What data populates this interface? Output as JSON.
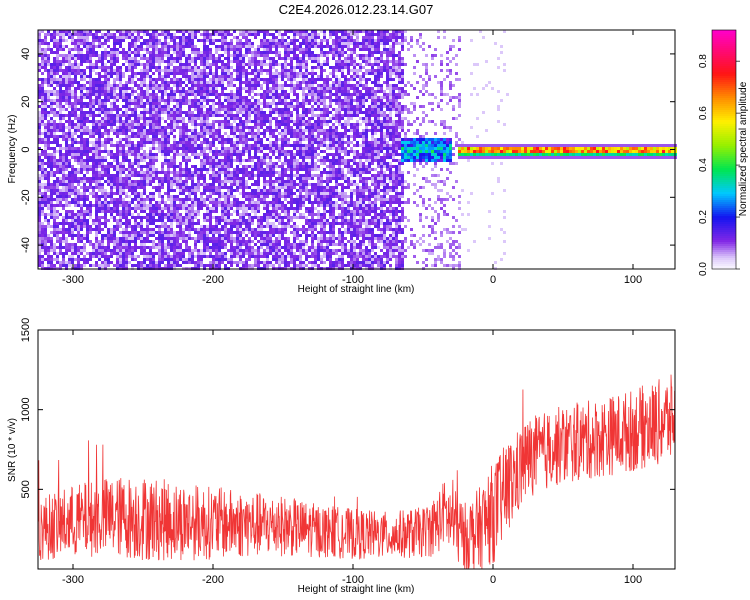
{
  "title": "C2E4.2026.012.23.14.G07",
  "chart_data": [
    {
      "type": "heatmap",
      "xlabel": "Height of straight line (km)",
      "ylabel": "Frequency (Hz)",
      "xlim": [
        -325,
        130
      ],
      "ylim": [
        -50,
        50
      ],
      "xticks": [
        -300,
        -200,
        -100,
        0,
        100
      ],
      "yticks": [
        -40,
        -20,
        0,
        20,
        40
      ],
      "colorbar": {
        "label": "Normalized spectral amplitude",
        "range": [
          0,
          0.92
        ],
        "ticks": [
          "0.0",
          "0.2",
          "0.4",
          "0.6",
          "0.8"
        ],
        "colormap": "rainbow (white-purple-blue-cyan-green-yellow-orange-red-magenta)"
      },
      "features": [
        {
          "description": "noise band",
          "x_range": [
            -325,
            -65
          ],
          "freq_range": [
            -50,
            50
          ],
          "amplitude": 0.03
        },
        {
          "description": "fading noise",
          "x_range": [
            -65,
            -25
          ],
          "freq_range": [
            -50,
            50
          ],
          "amplitude": 0.01
        },
        {
          "description": "signal onset",
          "x_range": [
            -65,
            -30
          ],
          "freq": 0,
          "amplitude_range": [
            0.2,
            0.4
          ]
        },
        {
          "description": "strong carrier",
          "x_range": [
            -20,
            130
          ],
          "freq": 0,
          "amplitude_range": [
            0.5,
            0.9
          ]
        }
      ]
    },
    {
      "type": "line",
      "xlabel": "Height of straight line (km)",
      "ylabel": "SNR (10 * v/v)",
      "xlim": [
        -325,
        130
      ],
      "ylim": [
        0,
        1500
      ],
      "xticks": [
        -300,
        -200,
        -100,
        0,
        100
      ],
      "yticks": [
        500,
        1000,
        1500
      ],
      "color": "#f03535",
      "x": [
        -325,
        -300,
        -275,
        -250,
        -225,
        -200,
        -175,
        -150,
        -125,
        -100,
        -75,
        -50,
        -40,
        -35,
        -30,
        -20,
        -10,
        0,
        10,
        25,
        50,
        75,
        100,
        130
      ],
      "mean": [
        250,
        300,
        330,
        320,
        300,
        290,
        280,
        270,
        240,
        220,
        210,
        230,
        280,
        360,
        300,
        200,
        250,
        350,
        500,
        700,
        780,
        820,
        870,
        950
      ],
      "spread": [
        200,
        230,
        250,
        270,
        250,
        230,
        210,
        190,
        170,
        160,
        150,
        160,
        200,
        200,
        230,
        220,
        260,
        320,
        300,
        250,
        250,
        250,
        260,
        280
      ]
    }
  ]
}
